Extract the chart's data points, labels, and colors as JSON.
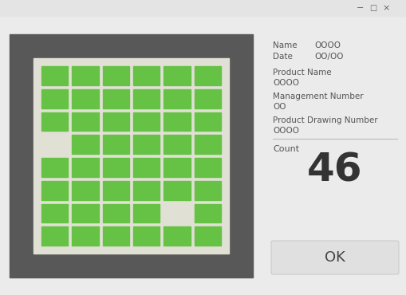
{
  "bg_color": "#ebebeb",
  "dark_panel_color": "#585858",
  "light_panel_color": "#e0e0d5",
  "green_color": "#66c244",
  "cols": 6,
  "rows": 8,
  "grid": [
    [
      1,
      1,
      1,
      1,
      1,
      1
    ],
    [
      1,
      1,
      1,
      1,
      1,
      1
    ],
    [
      1,
      1,
      1,
      1,
      1,
      1
    ],
    [
      0,
      1,
      1,
      1,
      1,
      1
    ],
    [
      1,
      1,
      1,
      1,
      1,
      1
    ],
    [
      1,
      1,
      1,
      1,
      1,
      1
    ],
    [
      1,
      1,
      1,
      1,
      0,
      1
    ],
    [
      1,
      1,
      1,
      1,
      1,
      1
    ]
  ],
  "count": "46",
  "name_label": "Name",
  "name_value": "OOOO",
  "date_label": "Date",
  "date_value": "OO/OO",
  "product_name_label": "Product Name",
  "product_name_value": "OOOO",
  "mgmt_label": "Management Number",
  "mgmt_value": "OO",
  "drawing_label": "Product Drawing Number",
  "drawing_value": "OOOO",
  "count_label": "Count",
  "ok_label": "OK",
  "ok_btn_color": "#e0e0e0",
  "label_color": "#555555",
  "value_color": "#555555",
  "count_color": "#333333",
  "titlebar_color": "#e4e4e4",
  "ctrl_color": "#666666"
}
